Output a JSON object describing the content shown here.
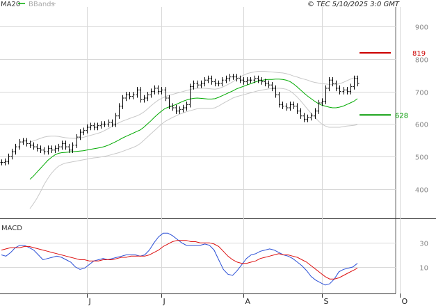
{
  "header": {
    "legend_ma": "MA20",
    "legend_bands": "BBands",
    "copyright": "© TEC 5/10/2025 3:0 GMT"
  },
  "macd_label": "MACD",
  "colors": {
    "price": "#000000",
    "ma": "#00aa00",
    "bands": "#c8c8c8",
    "macd": "#2a4fd6",
    "signal": "#dd1111",
    "resistance": "#cc0000",
    "support": "#009900",
    "grid": "#d8d8d8"
  },
  "chart_data": [
    {
      "type": "line",
      "name": "price-panel",
      "ylim": [
        310,
        960
      ],
      "y_ticks": [
        400,
        500,
        600,
        700,
        800,
        900
      ],
      "months": [
        {
          "label": "J",
          "index": 24
        },
        {
          "label": "J",
          "index": 45
        },
        {
          "label": "A",
          "index": 68
        },
        {
          "label": "S",
          "index": 90
        },
        {
          "label": "O",
          "index": 112
        }
      ],
      "price": [
        482,
        485,
        500,
        515,
        530,
        545,
        548,
        540,
        535,
        530,
        525,
        520,
        515,
        525,
        520,
        525,
        530,
        540,
        530,
        520,
        535,
        560,
        575,
        580,
        590,
        595,
        590,
        595,
        600,
        600,
        605,
        600,
        625,
        655,
        680,
        690,
        685,
        690,
        705,
        675,
        680,
        690,
        700,
        710,
        700,
        705,
        680,
        655,
        650,
        640,
        645,
        650,
        660,
        715,
        725,
        720,
        725,
        735,
        740,
        730,
        725,
        725,
        735,
        740,
        745,
        745,
        740,
        735,
        730,
        735,
        735,
        740,
        735,
        730,
        725,
        720,
        710,
        690,
        660,
        655,
        650,
        660,
        655,
        640,
        625,
        615,
        620,
        625,
        640,
        665,
        670,
        710,
        735,
        725,
        710,
        700,
        705,
        700,
        715,
        740,
        725
      ],
      "ma20": [
        430,
        440,
        452,
        464,
        476,
        488,
        497,
        505,
        510,
        512,
        513,
        514,
        515,
        516,
        517,
        518,
        520,
        522,
        524,
        526,
        528,
        531,
        535,
        540,
        545,
        551,
        557,
        562,
        567,
        572,
        577,
        582,
        590,
        600,
        610,
        621,
        631,
        640,
        648,
        652,
        656,
        660,
        665,
        670,
        674,
        677,
        679,
        680,
        679,
        678,
        677,
        677,
        678,
        682,
        687,
        692,
        697,
        702,
        708,
        712,
        716,
        720,
        724,
        728,
        732,
        734,
        736,
        737,
        737,
        738,
        738,
        737,
        735,
        731,
        724,
        715,
        705,
        695,
        686,
        678,
        670,
        663,
        658,
        655,
        652,
        650,
        650,
        652,
        655,
        660,
        665,
        670,
        678
      ],
      "bb_upper": [
        545,
        548,
        552,
        556,
        560,
        562,
        563,
        563,
        562,
        560,
        558,
        557,
        556,
        556,
        557,
        559,
        562,
        565,
        568,
        571,
        575,
        580,
        586,
        592,
        598,
        604,
        609,
        613,
        617,
        621,
        625,
        630,
        637,
        646,
        656,
        665,
        673,
        679,
        684,
        688,
        691,
        694,
        697,
        700,
        703,
        706,
        709,
        710,
        710,
        710,
        709,
        708,
        707,
        709,
        713,
        718,
        724,
        730,
        738,
        745,
        750,
        755,
        758,
        760,
        762,
        762,
        762,
        761,
        760,
        759,
        758,
        757,
        755,
        752,
        748,
        745,
        741,
        738,
        735,
        731,
        728,
        726,
        724,
        723,
        722,
        722,
        722,
        724,
        728,
        733,
        738,
        742,
        748
      ],
      "bb_lower": [
        340,
        355,
        372,
        392,
        414,
        432,
        448,
        460,
        470,
        476,
        480,
        482,
        484,
        486,
        488,
        490,
        492,
        494,
        496,
        497,
        499,
        501,
        503,
        506,
        509,
        512,
        516,
        520,
        524,
        528,
        533,
        540,
        550,
        560,
        570,
        580,
        590,
        600,
        608,
        614,
        620,
        625,
        630,
        634,
        638,
        641,
        644,
        647,
        648,
        648,
        648,
        648,
        650,
        655,
        662,
        668,
        674,
        680,
        684,
        687,
        690,
        693,
        696,
        699,
        702,
        704,
        706,
        708,
        709,
        710,
        710,
        709,
        707,
        702,
        694,
        684,
        672,
        659,
        646,
        633,
        621,
        610,
        600,
        594,
        590,
        590,
        590,
        590,
        592,
        594,
        595,
        596,
        598
      ],
      "resistance": {
        "value": 819,
        "label": "819"
      },
      "support": {
        "value": 628,
        "label": "628"
      }
    },
    {
      "type": "line",
      "name": "MACD",
      "ylim": [
        -12,
        48
      ],
      "y_ticks": [
        10,
        30
      ],
      "macd": [
        20,
        19,
        22,
        26,
        28,
        28,
        26,
        24,
        20,
        16,
        17,
        18,
        19,
        18,
        16,
        14,
        10,
        8,
        9,
        12,
        15,
        16,
        17,
        16,
        17,
        18,
        19,
        20,
        20,
        20,
        19,
        20,
        24,
        30,
        35,
        38,
        38,
        36,
        33,
        30,
        28,
        28,
        28,
        28,
        29,
        28,
        24,
        16,
        8,
        4,
        3,
        7,
        12,
        17,
        20,
        21,
        23,
        24,
        25,
        24,
        22,
        20,
        19,
        17,
        14,
        11,
        7,
        2,
        -1,
        -3,
        -5,
        -4,
        0,
        6,
        8,
        9,
        10,
        13
      ],
      "signal": [
        24,
        25,
        26,
        26,
        26,
        27,
        27,
        26,
        25,
        24,
        23,
        22,
        21,
        20,
        19,
        18,
        17,
        16,
        16,
        15,
        15,
        15,
        16,
        16,
        16,
        17,
        18,
        18,
        19,
        19,
        19,
        19,
        20,
        22,
        24,
        27,
        29,
        31,
        32,
        32,
        32,
        31,
        31,
        30,
        30,
        30,
        29,
        27,
        23,
        19,
        16,
        14,
        13,
        13,
        14,
        15,
        17,
        18,
        19,
        20,
        21,
        20,
        20,
        19,
        18,
        16,
        14,
        11,
        8,
        5,
        2,
        0,
        0,
        1,
        3,
        5,
        7,
        9
      ]
    }
  ]
}
